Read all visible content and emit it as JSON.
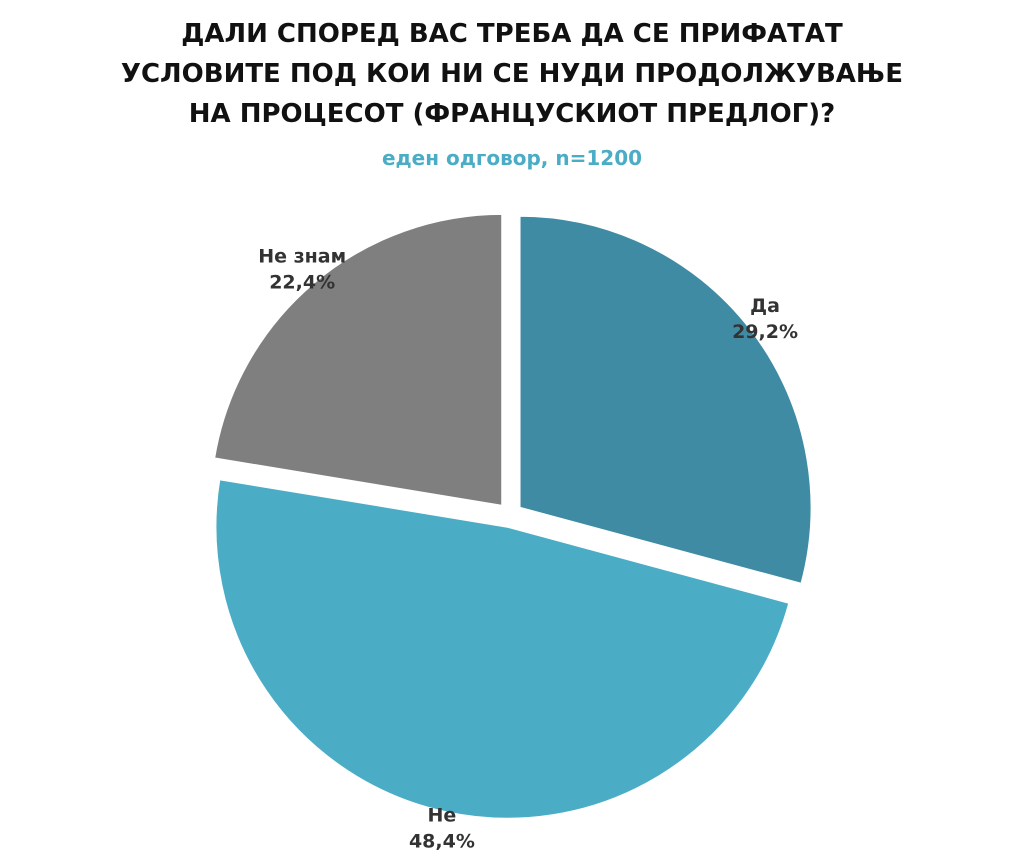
{
  "chart_data": {
    "type": "pie",
    "title": "ДАЛИ СПОРЕД ВАС ТРЕБА ДА СЕ ПРИФАТАТ УСЛОВИТЕ ПОД КОИ НИ СЕ НУДИ ПРОДОЛЖУВАЊЕ НА ПРОЦЕСОТ (ФРАНЦУСКИОТ ПРЕДЛОГ)?",
    "subtitle": "еден одговор,  n=1200",
    "categories": [
      "Да",
      "Не",
      "Не знам"
    ],
    "values": [
      29.2,
      48.4,
      22.4
    ],
    "value_labels": [
      "29,2%",
      "48,4%",
      "22,4%"
    ],
    "colors": [
      "#3f8ba4",
      "#4bacc6",
      "#7f7f7f"
    ]
  }
}
